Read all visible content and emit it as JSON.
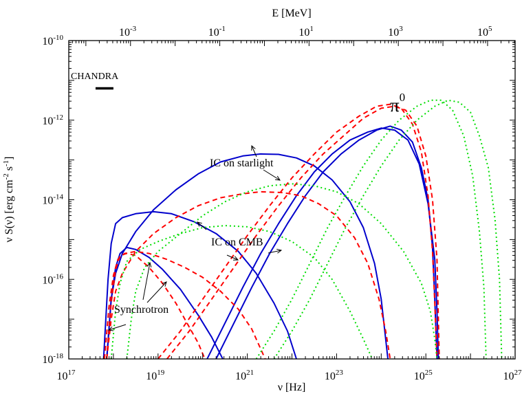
{
  "chart_data": {
    "type": "line",
    "title": "",
    "xlabel": "ν [Hz]",
    "ylabel_parts": [
      "ν S(ν) [erg cm",
      "-2",
      " s",
      "-1",
      "]"
    ],
    "x2label": "E [MeV]",
    "xscale": "log",
    "yscale": "log",
    "xlim_exp": [
      17,
      27
    ],
    "ylim_exp": [
      -18,
      -10
    ],
    "x_ticks": [
      {
        "exp": 17,
        "label": "10",
        "sup": "17"
      },
      {
        "exp": 19,
        "label": "10",
        "sup": "19"
      },
      {
        "exp": 21,
        "label": "10",
        "sup": "21"
      },
      {
        "exp": 23,
        "label": "10",
        "sup": "23"
      },
      {
        "exp": 25,
        "label": "10",
        "sup": "25"
      },
      {
        "exp": 27,
        "label": "10",
        "sup": "27"
      }
    ],
    "y_ticks": [
      {
        "exp": -18,
        "label": "10",
        "sup": "-18"
      },
      {
        "exp": -16,
        "label": "10",
        "sup": "-16"
      },
      {
        "exp": -14,
        "label": "10",
        "sup": "-14"
      },
      {
        "exp": -12,
        "label": "10",
        "sup": "-12"
      },
      {
        "exp": -10,
        "label": "10",
        "sup": "-10"
      }
    ],
    "x2_ticks": [
      {
        "log_hz": 18.38,
        "label": "10",
        "sup": "-3"
      },
      {
        "log_hz": 20.38,
        "label": "10",
        "sup": "-1"
      },
      {
        "log_hz": 22.38,
        "label": "10",
        "sup": "1"
      },
      {
        "log_hz": 24.38,
        "label": "10",
        "sup": "3"
      },
      {
        "log_hz": 26.38,
        "label": "10",
        "sup": "5"
      }
    ],
    "series": [
      {
        "color": "#0000cc",
        "dash": "solid",
        "width": 2.0,
        "points": [
          [
            17.78,
            -18
          ],
          [
            17.88,
            -16
          ],
          [
            17.95,
            -15.1
          ],
          [
            18.05,
            -14.6
          ],
          [
            18.2,
            -14.45
          ],
          [
            18.5,
            -14.35
          ],
          [
            18.9,
            -14.3
          ],
          [
            19.3,
            -14.35
          ],
          [
            19.8,
            -14.55
          ],
          [
            20.3,
            -14.85
          ],
          [
            20.8,
            -15.3
          ],
          [
            21.2,
            -15.85
          ],
          [
            21.6,
            -16.6
          ],
          [
            21.9,
            -17.3
          ],
          [
            22.1,
            -18
          ]
        ]
      },
      {
        "color": "#0000cc",
        "dash": "solid",
        "width": 2.0,
        "points": [
          [
            17.85,
            -18
          ],
          [
            17.95,
            -16.5
          ],
          [
            18.05,
            -15.7
          ],
          [
            18.15,
            -15.35
          ],
          [
            18.3,
            -15.2
          ],
          [
            18.5,
            -15.25
          ],
          [
            18.8,
            -15.45
          ],
          [
            19.1,
            -15.75
          ],
          [
            19.5,
            -16.25
          ],
          [
            19.9,
            -16.9
          ],
          [
            20.2,
            -17.45
          ],
          [
            20.45,
            -18
          ]
        ]
      },
      {
        "color": "#0000cc",
        "dash": "solid",
        "width": 2.0,
        "points": [
          [
            17.85,
            -18
          ],
          [
            17.95,
            -16.5
          ],
          [
            18.05,
            -15.85
          ],
          [
            18.2,
            -15.35
          ],
          [
            18.5,
            -14.8
          ],
          [
            18.9,
            -14.25
          ],
          [
            19.4,
            -13.75
          ],
          [
            19.9,
            -13.35
          ],
          [
            20.4,
            -13.05
          ],
          [
            20.9,
            -12.9
          ],
          [
            21.3,
            -12.85
          ],
          [
            21.7,
            -12.86
          ],
          [
            22.1,
            -12.95
          ],
          [
            22.5,
            -13.15
          ],
          [
            22.9,
            -13.5
          ],
          [
            23.3,
            -14.05
          ],
          [
            23.6,
            -14.7
          ],
          [
            23.85,
            -15.6
          ],
          [
            24.0,
            -16.5
          ],
          [
            24.15,
            -18
          ]
        ]
      },
      {
        "color": "#0000cc",
        "dash": "solid",
        "width": 2.0,
        "points": [
          [
            20.3,
            -18
          ],
          [
            20.7,
            -17.1
          ],
          [
            21.1,
            -16.2
          ],
          [
            21.5,
            -15.35
          ],
          [
            21.9,
            -14.6
          ],
          [
            22.3,
            -13.9
          ],
          [
            22.7,
            -13.3
          ],
          [
            23.1,
            -12.85
          ],
          [
            23.5,
            -12.5
          ],
          [
            23.9,
            -12.25
          ],
          [
            24.2,
            -12.15
          ],
          [
            24.45,
            -12.25
          ],
          [
            24.7,
            -12.55
          ],
          [
            24.9,
            -13.2
          ],
          [
            25.05,
            -14.0
          ],
          [
            25.15,
            -15.2
          ],
          [
            25.2,
            -16.5
          ],
          [
            25.25,
            -18
          ]
        ]
      },
      {
        "color": "#0000cc",
        "dash": "solid",
        "width": 2.0,
        "points": [
          [
            20.1,
            -18
          ],
          [
            20.5,
            -17.1
          ],
          [
            20.9,
            -16.2
          ],
          [
            21.3,
            -15.35
          ],
          [
            21.7,
            -14.6
          ],
          [
            22.1,
            -13.9
          ],
          [
            22.5,
            -13.3
          ],
          [
            22.9,
            -12.85
          ],
          [
            23.3,
            -12.5
          ],
          [
            23.7,
            -12.3
          ],
          [
            24.0,
            -12.2
          ],
          [
            24.3,
            -12.25
          ],
          [
            24.6,
            -12.5
          ],
          [
            24.85,
            -13.1
          ],
          [
            25.05,
            -14.1
          ],
          [
            25.2,
            -15.5
          ],
          [
            25.25,
            -16.8
          ],
          [
            25.28,
            -18
          ]
        ]
      },
      {
        "color": "#ff0000",
        "dash": "7,5",
        "width": 2.0,
        "points": [
          [
            17.8,
            -18
          ],
          [
            17.9,
            -16.7
          ],
          [
            18.0,
            -15.9
          ],
          [
            18.1,
            -15.5
          ],
          [
            18.25,
            -15.35
          ],
          [
            18.5,
            -15.3
          ],
          [
            18.8,
            -15.35
          ],
          [
            19.2,
            -15.5
          ],
          [
            19.6,
            -15.7
          ],
          [
            20.0,
            -15.95
          ],
          [
            20.4,
            -16.3
          ],
          [
            20.8,
            -16.75
          ],
          [
            21.1,
            -17.25
          ],
          [
            21.4,
            -18
          ]
        ]
      },
      {
        "color": "#ff0000",
        "dash": "7,5",
        "width": 2.0,
        "points": [
          [
            17.85,
            -18
          ],
          [
            17.95,
            -16.6
          ],
          [
            18.05,
            -15.75
          ],
          [
            18.15,
            -15.4
          ],
          [
            18.3,
            -15.35
          ],
          [
            18.5,
            -15.4
          ],
          [
            18.8,
            -15.7
          ],
          [
            19.1,
            -16.1
          ],
          [
            19.4,
            -16.6
          ],
          [
            19.7,
            -17.2
          ],
          [
            19.9,
            -17.6
          ],
          [
            20.05,
            -18
          ]
        ]
      },
      {
        "color": "#ff0000",
        "dash": "7,5",
        "width": 2.0,
        "points": [
          [
            17.85,
            -18
          ],
          [
            17.95,
            -17.0
          ],
          [
            18.05,
            -16.3
          ],
          [
            18.2,
            -15.85
          ],
          [
            18.5,
            -15.3
          ],
          [
            18.9,
            -14.85
          ],
          [
            19.4,
            -14.45
          ],
          [
            19.9,
            -14.15
          ],
          [
            20.4,
            -13.95
          ],
          [
            20.9,
            -13.85
          ],
          [
            21.3,
            -13.8
          ],
          [
            21.8,
            -13.82
          ],
          [
            22.2,
            -13.9
          ],
          [
            22.6,
            -14.1
          ],
          [
            23.0,
            -14.4
          ],
          [
            23.4,
            -14.95
          ],
          [
            23.7,
            -15.6
          ],
          [
            23.95,
            -16.5
          ],
          [
            24.1,
            -17.3
          ],
          [
            24.2,
            -18
          ]
        ]
      },
      {
        "color": "#ff0000",
        "dash": "7,5",
        "width": 2.0,
        "points": [
          [
            19.0,
            -18
          ],
          [
            19.5,
            -17.3
          ],
          [
            20.0,
            -16.5
          ],
          [
            20.5,
            -15.7
          ],
          [
            21.0,
            -14.9
          ],
          [
            21.5,
            -14.15
          ],
          [
            22.0,
            -13.45
          ],
          [
            22.5,
            -12.85
          ],
          [
            23.0,
            -12.3
          ],
          [
            23.5,
            -11.9
          ],
          [
            23.9,
            -11.65
          ],
          [
            24.2,
            -11.6
          ],
          [
            24.45,
            -11.7
          ],
          [
            24.7,
            -12.1
          ],
          [
            24.9,
            -12.8
          ],
          [
            25.05,
            -13.9
          ],
          [
            25.15,
            -15.3
          ],
          [
            25.2,
            -16.6
          ],
          [
            25.25,
            -18
          ]
        ]
      },
      {
        "color": "#ff0000",
        "dash": "7,5",
        "width": 2.0,
        "points": [
          [
            19.2,
            -18
          ],
          [
            19.7,
            -17.3
          ],
          [
            20.2,
            -16.5
          ],
          [
            20.7,
            -15.7
          ],
          [
            21.2,
            -14.9
          ],
          [
            21.7,
            -14.15
          ],
          [
            22.2,
            -13.45
          ],
          [
            22.7,
            -12.85
          ],
          [
            23.2,
            -12.35
          ],
          [
            23.6,
            -11.95
          ],
          [
            24.0,
            -11.7
          ],
          [
            24.3,
            -11.65
          ],
          [
            24.55,
            -11.75
          ],
          [
            24.8,
            -12.15
          ],
          [
            25.0,
            -12.9
          ],
          [
            25.15,
            -14.0
          ],
          [
            25.25,
            -15.5
          ],
          [
            25.3,
            -18
          ]
        ]
      },
      {
        "color": "#00dd00",
        "dash": "2,4",
        "width": 2.0,
        "points": [
          [
            17.95,
            -18
          ],
          [
            18.05,
            -16.8
          ],
          [
            18.15,
            -16.1
          ],
          [
            18.3,
            -15.55
          ],
          [
            18.6,
            -15.25
          ],
          [
            19.0,
            -15.05
          ],
          [
            19.5,
            -14.85
          ],
          [
            20.0,
            -14.7
          ],
          [
            20.5,
            -14.65
          ],
          [
            21.0,
            -14.68
          ],
          [
            21.5,
            -14.8
          ],
          [
            22.0,
            -15.05
          ],
          [
            22.5,
            -15.45
          ],
          [
            22.9,
            -16.0
          ],
          [
            23.3,
            -16.8
          ],
          [
            23.6,
            -17.5
          ],
          [
            23.8,
            -18
          ]
        ]
      },
      {
        "color": "#00dd00",
        "dash": "2,4",
        "width": 2.0,
        "points": [
          [
            18.3,
            -18
          ],
          [
            18.4,
            -17.0
          ],
          [
            18.5,
            -16.3
          ],
          [
            18.7,
            -15.7
          ],
          [
            19.0,
            -15.3
          ],
          [
            19.5,
            -14.85
          ],
          [
            20.0,
            -14.4
          ],
          [
            20.5,
            -14.05
          ],
          [
            21.0,
            -13.8
          ],
          [
            21.5,
            -13.65
          ],
          [
            22.0,
            -13.6
          ],
          [
            22.5,
            -13.65
          ],
          [
            23.0,
            -13.8
          ],
          [
            23.5,
            -14.1
          ],
          [
            24.0,
            -14.6
          ],
          [
            24.5,
            -15.3
          ],
          [
            24.9,
            -16.1
          ],
          [
            25.1,
            -16.8
          ],
          [
            25.2,
            -17.5
          ],
          [
            25.25,
            -18
          ]
        ]
      },
      {
        "color": "#00dd00",
        "dash": "2,4",
        "width": 2.0,
        "points": [
          [
            21.2,
            -18
          ],
          [
            21.6,
            -17.3
          ],
          [
            22.0,
            -16.5
          ],
          [
            22.4,
            -15.6
          ],
          [
            22.8,
            -14.7
          ],
          [
            23.2,
            -13.9
          ],
          [
            23.6,
            -13.15
          ],
          [
            24.0,
            -12.5
          ],
          [
            24.4,
            -12.0
          ],
          [
            24.8,
            -11.65
          ],
          [
            25.1,
            -11.5
          ],
          [
            25.35,
            -11.5
          ],
          [
            25.6,
            -11.75
          ],
          [
            25.85,
            -12.4
          ],
          [
            26.05,
            -13.4
          ],
          [
            26.2,
            -14.8
          ],
          [
            26.3,
            -16.2
          ],
          [
            26.35,
            -18
          ]
        ]
      },
      {
        "color": "#00dd00",
        "dash": "2,4",
        "width": 2.0,
        "points": [
          [
            21.6,
            -18
          ],
          [
            22.0,
            -17.3
          ],
          [
            22.4,
            -16.5
          ],
          [
            22.8,
            -15.6
          ],
          [
            23.2,
            -14.7
          ],
          [
            23.6,
            -13.9
          ],
          [
            24.0,
            -13.15
          ],
          [
            24.4,
            -12.5
          ],
          [
            24.8,
            -12.0
          ],
          [
            25.2,
            -11.65
          ],
          [
            25.5,
            -11.5
          ],
          [
            25.75,
            -11.55
          ],
          [
            26.0,
            -11.8
          ],
          [
            26.2,
            -12.4
          ],
          [
            26.4,
            -13.2
          ],
          [
            26.55,
            -14.5
          ],
          [
            26.65,
            -16.0
          ],
          [
            26.7,
            -18
          ]
        ]
      }
    ],
    "annotations": {
      "chandra": "CHANDRA",
      "chandra_band": [
        17.6,
        18.0,
        -11.2
      ],
      "pi0_base": "π",
      "pi0_sup": "0",
      "ic_starlight": "IC on starlight",
      "ic_cmb": "IC on CMB",
      "synchrotron": "Synchrotron"
    }
  }
}
